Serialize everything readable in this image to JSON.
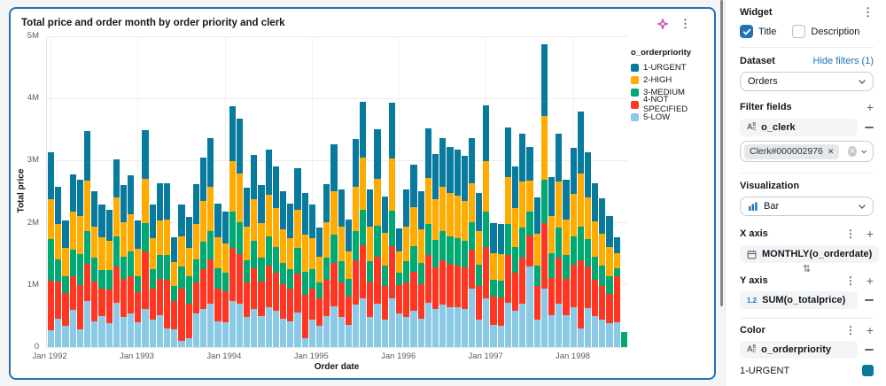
{
  "chart_card": {
    "title": "Total price and order month by order priority and clerk"
  },
  "chart_data": {
    "type": "bar",
    "stacked": true,
    "title": "Total price and order month by order priority and clerk",
    "xlabel": "Order date",
    "ylabel": "Total price",
    "y_unit": "millions",
    "ylim": [
      0,
      5
    ],
    "y_ticks": [
      "0",
      "1M",
      "2M",
      "3M",
      "4M",
      "5M"
    ],
    "x_range": "Jan 1992 to Aug 1998, monthly (80 bars)",
    "x_tick_labels": [
      "Jan 1992",
      "Jan 1993",
      "Jan 1994",
      "Jan 1995",
      "Jan 1996",
      "Jan 1997",
      "Jan 1998"
    ],
    "x_tick_indices": [
      0,
      12,
      24,
      36,
      48,
      60,
      72
    ],
    "legend_title": "o_orderpriority",
    "legend_position": "top-right",
    "grid": true,
    "stack_order_bottom_to_top": [
      "5-LOW",
      "4-NOT SPECIFIED",
      "3-MEDIUM",
      "2-HIGH",
      "1-URGENT"
    ],
    "legend_order": [
      "1-URGENT",
      "2-HIGH",
      "3-MEDIUM",
      "4-NOT SPECIFIED",
      "5-LOW"
    ],
    "series": [
      {
        "name": "5-LOW",
        "color": "#8BCAE7",
        "values": [
          0.27,
          0.46,
          0.35,
          0.6,
          0.28,
          0.75,
          0.42,
          0.5,
          0.38,
          0.72,
          0.48,
          0.55,
          0.4,
          0.62,
          0.44,
          0.52,
          0.3,
          0.28,
          0.1,
          0.15,
          0.55,
          0.62,
          0.7,
          0.42,
          0.4,
          0.75,
          0.7,
          0.48,
          0.62,
          0.5,
          0.64,
          0.58,
          0.46,
          0.42,
          0.56,
          0.15,
          0.44,
          0.34,
          0.5,
          0.66,
          0.48,
          0.36,
          0.68,
          0.78,
          0.48,
          0.7,
          0.44,
          0.78,
          0.55,
          0.48,
          0.58,
          0.46,
          0.72,
          0.62,
          0.68,
          0.65,
          0.64,
          0.62,
          0.95,
          0.45,
          0.78,
          0.36,
          0.35,
          0.72,
          0.58,
          0.7,
          1.3,
          0.44,
          0.95,
          0.52,
          0.7,
          0.52,
          0.64,
          0.3,
          0.63,
          0.5,
          0.45,
          0.38,
          0.4,
          0
        ]
      },
      {
        "name": "4-NOT SPECIFIED",
        "color": "#FF3621",
        "values": [
          0.8,
          0.6,
          0.52,
          0.55,
          0.72,
          0.6,
          0.64,
          0.45,
          0.55,
          0.58,
          0.62,
          0.6,
          0.48,
          0.92,
          0.5,
          0.58,
          0.78,
          0.46,
          0.85,
          0.55,
          0.5,
          0.64,
          0.72,
          0.52,
          0.5,
          0.85,
          0.8,
          0.56,
          0.65,
          0.56,
          0.68,
          0.62,
          0.55,
          0.52,
          0.62,
          0.7,
          0.5,
          0.44,
          0.58,
          0.7,
          0.56,
          0.46,
          0.72,
          0.86,
          0.56,
          0.76,
          0.54,
          0.85,
          0.45,
          0.56,
          0.63,
          0.55,
          0.76,
          0.66,
          0.72,
          0.69,
          0.68,
          0.66,
          0.62,
          0.54,
          0.84,
          0.45,
          0.45,
          0.76,
          0.62,
          0.74,
          0.5,
          0.54,
          1.05,
          0.6,
          0.74,
          0.58,
          0.69,
          1.1,
          0.67,
          0.58,
          0.53,
          0.48,
          0.75,
          0
        ]
      },
      {
        "name": "3-MEDIUM",
        "color": "#00A972",
        "values": [
          0.67,
          0.35,
          0.28,
          0.42,
          0.5,
          0.52,
          0.38,
          0.3,
          0.32,
          0.48,
          0.36,
          0.4,
          0.27,
          0.46,
          0.32,
          0.38,
          0.4,
          0.25,
          0.35,
          0.45,
          0.36,
          0.44,
          0.45,
          0.33,
          0.3,
          0.58,
          0.52,
          0.36,
          0.45,
          0.38,
          0.46,
          0.42,
          0.35,
          0.32,
          0.42,
          0.36,
          0.32,
          0.26,
          0.37,
          0.46,
          0.35,
          0.28,
          0.47,
          0.58,
          0.35,
          0.5,
          0.34,
          0.57,
          0.2,
          0.35,
          0.42,
          0.35,
          0.5,
          0.45,
          0.47,
          0.45,
          0.44,
          0.43,
          0.45,
          0.34,
          0.56,
          0.27,
          0.27,
          0.51,
          0.42,
          0.49,
          0.38,
          0.33,
          0.7,
          0.39,
          0.49,
          0.38,
          0.45,
          0.55,
          0.44,
          0.38,
          0.33,
          0.29,
          0.12,
          0.25
        ]
      },
      {
        "name": "2-HIGH",
        "color": "#FFAB00",
        "values": [
          0.64,
          0.57,
          0.45,
          0.61,
          0.62,
          0.81,
          0.5,
          0.52,
          0.46,
          0.63,
          0.55,
          0.6,
          0.44,
          0.72,
          0.5,
          0.56,
          0.58,
          0.38,
          0.48,
          0.45,
          0.58,
          0.66,
          0.72,
          0.5,
          0.47,
          0.82,
          0.78,
          0.55,
          0.66,
          0.56,
          0.68,
          0.62,
          0.54,
          0.5,
          0.62,
          0.6,
          0.5,
          0.42,
          0.56,
          0.7,
          0.55,
          0.45,
          0.72,
          0.84,
          0.55,
          0.75,
          0.53,
          0.84,
          0.35,
          0.55,
          0.63,
          0.54,
          0.75,
          0.66,
          0.72,
          0.69,
          0.68,
          0.65,
          0.62,
          0.54,
          0.82,
          0.44,
          0.43,
          0.76,
          0.62,
          0.74,
          0.5,
          0.52,
          1.03,
          0.6,
          0.74,
          0.58,
          0.69,
          0.85,
          0.67,
          0.57,
          0.52,
          0.46,
          0.25,
          0
        ]
      },
      {
        "name": "1-URGENT",
        "color": "#077A9D",
        "values": [
          0.77,
          0.6,
          0.45,
          0.6,
          0.58,
          0.8,
          0.58,
          0.53,
          0.5,
          0.62,
          0.61,
          0.62,
          0.46,
          0.78,
          0.54,
          0.61,
          0.58,
          0.4,
          0.52,
          0.5,
          0.64,
          0.7,
          0.78,
          0.54,
          0.52,
          0.88,
          0.88,
          0.62,
          0.72,
          0.62,
          0.73,
          0.68,
          0.62,
          0.56,
          0.66,
          0.67,
          0.54,
          0.47,
          0.62,
          0.75,
          0.61,
          0.51,
          0.77,
          0.9,
          0.61,
          0.8,
          0.58,
          0.9,
          0.36,
          0.61,
          0.69,
          0.62,
          0.8,
          0.72,
          0.78,
          0.75,
          0.74,
          0.72,
          0.73,
          0.61,
          0.9,
          0.48,
          0.48,
          0.8,
          0.68,
          0.78,
          0.55,
          0.59,
          1.15,
          0.64,
          0.78,
          0.64,
          0.75,
          1.0,
          0.74,
          0.62,
          0.57,
          0.51,
          0.25,
          0
        ]
      }
    ]
  },
  "panel": {
    "widget_label": "Widget",
    "checkboxes": {
      "title_label": "Title",
      "description_label": "Description",
      "title_checked": true,
      "description_checked": false
    },
    "dataset": {
      "label": "Dataset",
      "hide_filters_link": "Hide filters (1)",
      "selected": "Orders"
    },
    "filter_fields": {
      "label": "Filter fields",
      "field": "o_clerk",
      "chip_value": "Clerk#000002976"
    },
    "visualization": {
      "label": "Visualization",
      "selected": "Bar"
    },
    "x_axis": {
      "label": "X axis",
      "field": "MONTHLY(o_orderdate)"
    },
    "y_axis": {
      "label": "Y axis",
      "field": "SUM(o_totalprice)"
    },
    "color": {
      "label": "Color",
      "field": "o_orderpriority",
      "first_category": "1-URGENT",
      "first_category_color": "#077A9D"
    }
  },
  "colors": {
    "accent_blue": "#2272B4",
    "card_border": "#2272B4",
    "grid": "#ECECEC",
    "text_dark": "#11171C",
    "text_muted": "#5F6672"
  }
}
